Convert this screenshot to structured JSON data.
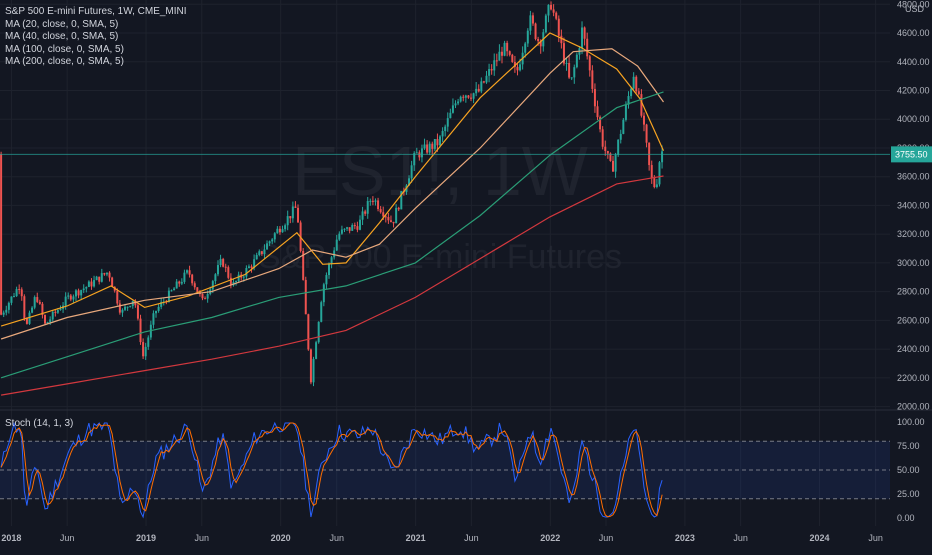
{
  "legend": {
    "title": "S&P 500 E-mini Futures, 1W, CME_MINI",
    "ma": [
      "MA (20, close, 0, SMA, 5)",
      "MA (40, close, 0, SMA, 5)",
      "MA (100, close, 0, SMA, 5)",
      "MA (200, close, 0, SMA, 5)"
    ]
  },
  "watermark": {
    "symbol": "ES1!, 1W",
    "name": "S&P 500 E-mini Futures"
  },
  "stoch_label": "Stoch (14, 1, 3)",
  "chart_data": {
    "type": "candlestick",
    "price_axis": {
      "unit": "USD",
      "ticks": [
        "2000.00",
        "2200.00",
        "2400.00",
        "2600.00",
        "2800.00",
        "3000.00",
        "3200.00",
        "3400.00",
        "3600.00",
        "3800.00",
        "4000.00",
        "4200.00",
        "4400.00",
        "4600.00",
        "4800.00"
      ],
      "range": [
        1990,
        4830
      ]
    },
    "time_axis": {
      "ticks": [
        "2018",
        "Jun",
        "2019",
        "Jun",
        "2020",
        "Jun",
        "2021",
        "Jun",
        "2022",
        "Jun",
        "2023",
        "Jun",
        "2024",
        "Jun"
      ],
      "range": [
        "2017-12-01",
        "2024-07-10"
      ]
    },
    "last_price": {
      "value": 3755.5,
      "label": "3755.50",
      "color": "#26a69a"
    },
    "price_path": [
      [
        "2017-12-04",
        2640
      ],
      [
        "2018-01-26",
        2860
      ],
      [
        "2018-02-09",
        2540
      ],
      [
        "2018-03-09",
        2780
      ],
      [
        "2018-04-02",
        2570
      ],
      [
        "2018-06-08",
        2770
      ],
      [
        "2018-07-27",
        2840
      ],
      [
        "2018-09-21",
        2940
      ],
      [
        "2018-10-26",
        2650
      ],
      [
        "2018-11-30",
        2760
      ],
      [
        "2018-12-24",
        2350
      ],
      [
        "2019-01-25",
        2660
      ],
      [
        "2019-04-26",
        2940
      ],
      [
        "2019-06-03",
        2730
      ],
      [
        "2019-07-26",
        3020
      ],
      [
        "2019-08-23",
        2840
      ],
      [
        "2019-10-25",
        3020
      ],
      [
        "2019-12-27",
        3240
      ],
      [
        "2020-02-14",
        3390
      ],
      [
        "2020-03-23",
        2190
      ],
      [
        "2020-04-24",
        2830
      ],
      [
        "2020-06-05",
        3200
      ],
      [
        "2020-07-31",
        3270
      ],
      [
        "2020-09-04",
        3460
      ],
      [
        "2020-10-30",
        3280
      ],
      [
        "2020-12-31",
        3750
      ],
      [
        "2021-03-05",
        3840
      ],
      [
        "2021-04-30",
        4180
      ],
      [
        "2021-06-18",
        4180
      ],
      [
        "2021-08-27",
        4500
      ],
      [
        "2021-10-01",
        4310
      ],
      [
        "2021-11-05",
        4700
      ],
      [
        "2021-12-03",
        4530
      ],
      [
        "2022-01-03",
        4810
      ],
      [
        "2022-02-25",
        4230
      ],
      [
        "2022-03-29",
        4630
      ],
      [
        "2022-05-20",
        3860
      ],
      [
        "2022-06-17",
        3640
      ],
      [
        "2022-08-16",
        4330
      ],
      [
        "2022-09-16",
        3860
      ],
      [
        "2022-09-30",
        3590
      ],
      [
        "2022-10-14",
        3520
      ],
      [
        "2022-10-28",
        3790
      ],
      [
        "2022-11-04",
        3756
      ]
    ],
    "moving_averages": [
      {
        "name": "MA 20",
        "color": "#f7a321",
        "points": [
          [
            "2017-12-04",
            2560
          ],
          [
            "2018-06-01",
            2700
          ],
          [
            "2018-09-28",
            2840
          ],
          [
            "2018-12-28",
            2690
          ],
          [
            "2019-04-26",
            2770
          ],
          [
            "2019-09-27",
            2920
          ],
          [
            "2020-02-14",
            3210
          ],
          [
            "2020-04-24",
            2990
          ],
          [
            "2020-06-26",
            3000
          ],
          [
            "2020-09-25",
            3280
          ],
          [
            "2020-12-31",
            3600
          ],
          [
            "2021-06-25",
            4150
          ],
          [
            "2021-12-31",
            4600
          ],
          [
            "2022-03-25",
            4500
          ],
          [
            "2022-06-30",
            4350
          ],
          [
            "2022-09-02",
            4140
          ],
          [
            "2022-11-04",
            3780
          ]
        ]
      },
      {
        "name": "MA 40",
        "color": "#e8a87c",
        "points": [
          [
            "2017-12-04",
            2470
          ],
          [
            "2018-06-01",
            2620
          ],
          [
            "2018-12-28",
            2740
          ],
          [
            "2019-06-28",
            2800
          ],
          [
            "2019-12-27",
            2960
          ],
          [
            "2020-03-27",
            3090
          ],
          [
            "2020-06-26",
            3040
          ],
          [
            "2020-09-25",
            3130
          ],
          [
            "2020-12-31",
            3380
          ],
          [
            "2021-06-25",
            3800
          ],
          [
            "2021-12-31",
            4320
          ],
          [
            "2022-03-04",
            4470
          ],
          [
            "2022-06-17",
            4490
          ],
          [
            "2022-08-26",
            4370
          ],
          [
            "2022-11-04",
            4120
          ]
        ]
      },
      {
        "name": "MA 100",
        "color": "#2a9d76",
        "points": [
          [
            "2017-12-04",
            2200
          ],
          [
            "2018-06-29",
            2370
          ],
          [
            "2018-12-28",
            2520
          ],
          [
            "2019-06-28",
            2620
          ],
          [
            "2019-12-27",
            2760
          ],
          [
            "2020-06-26",
            2840
          ],
          [
            "2020-12-31",
            3000
          ],
          [
            "2021-06-25",
            3330
          ],
          [
            "2021-12-31",
            3750
          ],
          [
            "2022-06-30",
            4080
          ],
          [
            "2022-11-04",
            4190
          ]
        ]
      },
      {
        "name": "MA 200",
        "color": "#d2383e",
        "points": [
          [
            "2017-12-04",
            2080
          ],
          [
            "2018-06-29",
            2170
          ],
          [
            "2018-12-28",
            2250
          ],
          [
            "2019-06-28",
            2330
          ],
          [
            "2019-12-27",
            2420
          ],
          [
            "2020-06-26",
            2530
          ],
          [
            "2020-12-31",
            2760
          ],
          [
            "2021-06-25",
            3030
          ],
          [
            "2021-12-31",
            3320
          ],
          [
            "2022-06-30",
            3550
          ],
          [
            "2022-11-04",
            3605
          ]
        ]
      }
    ],
    "stochastic": {
      "axis_ticks": [
        "0.00",
        "25.00",
        "50.00",
        "75.00",
        "100.00"
      ],
      "range": [
        0,
        100
      ],
      "bands": [
        20,
        50,
        80
      ],
      "k_color": "#2962ff",
      "d_color": "#ff6d00",
      "points": [
        [
          "2017-12-04",
          50
        ],
        [
          "2017-12-29",
          92
        ],
        [
          "2018-01-26",
          97
        ],
        [
          "2018-02-09",
          5
        ],
        [
          "2018-03-09",
          60
        ],
        [
          "2018-04-02",
          8
        ],
        [
          "2018-06-08",
          70
        ],
        [
          "2018-07-27",
          92
        ],
        [
          "2018-09-21",
          96
        ],
        [
          "2018-10-26",
          8
        ],
        [
          "2018-11-30",
          35
        ],
        [
          "2018-12-24",
          2
        ],
        [
          "2019-01-25",
          60
        ],
        [
          "2019-04-26",
          96
        ],
        [
          "2019-06-03",
          25
        ],
        [
          "2019-07-26",
          88
        ],
        [
          "2019-08-23",
          30
        ],
        [
          "2019-10-25",
          85
        ],
        [
          "2019-12-27",
          98
        ],
        [
          "2020-02-14",
          97
        ],
        [
          "2020-03-23",
          3
        ],
        [
          "2020-04-24",
          60
        ],
        [
          "2020-06-05",
          90
        ],
        [
          "2020-07-31",
          85
        ],
        [
          "2020-09-04",
          95
        ],
        [
          "2020-10-30",
          45
        ],
        [
          "2020-12-31",
          95
        ],
        [
          "2021-03-05",
          80
        ],
        [
          "2021-04-30",
          96
        ],
        [
          "2021-06-18",
          70
        ],
        [
          "2021-08-27",
          95
        ],
        [
          "2021-10-01",
          35
        ],
        [
          "2021-11-05",
          94
        ],
        [
          "2021-12-03",
          60
        ],
        [
          "2022-01-03",
          96
        ],
        [
          "2022-02-25",
          10
        ],
        [
          "2022-03-29",
          80
        ],
        [
          "2022-05-20",
          10
        ],
        [
          "2022-06-17",
          3
        ],
        [
          "2022-08-16",
          98
        ],
        [
          "2022-09-16",
          25
        ],
        [
          "2022-09-30",
          3
        ],
        [
          "2022-10-14",
          2
        ],
        [
          "2022-10-28",
          30
        ],
        [
          "2022-11-04",
          31
        ]
      ]
    }
  }
}
